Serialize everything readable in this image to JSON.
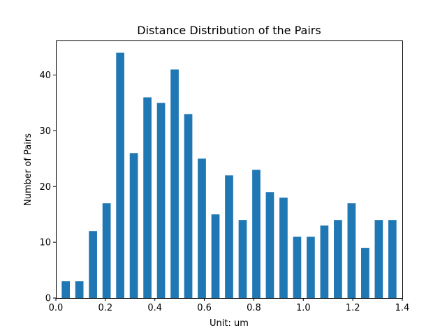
{
  "chart_data": {
    "type": "bar",
    "title": "Distance Distribution of the Pairs",
    "xlabel": "Unit: um",
    "ylabel": "Number of Pairs",
    "xlim": [
      0,
      1.4
    ],
    "ylim": [
      0,
      46.2
    ],
    "grid": false,
    "bar_color": "#1f77b4",
    "bar_width": 0.033,
    "x_ticks": [
      {
        "value": 0.0,
        "label": "0.0"
      },
      {
        "value": 0.2,
        "label": "0.2"
      },
      {
        "value": 0.4,
        "label": "0.4"
      },
      {
        "value": 0.6,
        "label": "0.6"
      },
      {
        "value": 0.8,
        "label": "0.8"
      },
      {
        "value": 1.0,
        "label": "1.0"
      },
      {
        "value": 1.2,
        "label": "1.2"
      },
      {
        "value": 1.4,
        "label": "1.4"
      }
    ],
    "y_ticks": [
      {
        "value": 0,
        "label": "0"
      },
      {
        "value": 10,
        "label": "10"
      },
      {
        "value": 20,
        "label": "20"
      },
      {
        "value": 30,
        "label": "30"
      },
      {
        "value": 40,
        "label": "40"
      }
    ],
    "x": [
      0.04,
      0.095,
      0.15,
      0.205,
      0.26,
      0.315,
      0.37,
      0.425,
      0.48,
      0.535,
      0.59,
      0.645,
      0.7,
      0.755,
      0.81,
      0.865,
      0.92,
      0.975,
      1.03,
      1.085,
      1.14,
      1.195,
      1.25,
      1.305,
      1.36
    ],
    "values": [
      3,
      3,
      12,
      17,
      44,
      26,
      36,
      35,
      41,
      33,
      25,
      15,
      22,
      14,
      23,
      19,
      18,
      11,
      11,
      13,
      14,
      17,
      9,
      14,
      14
    ]
  }
}
